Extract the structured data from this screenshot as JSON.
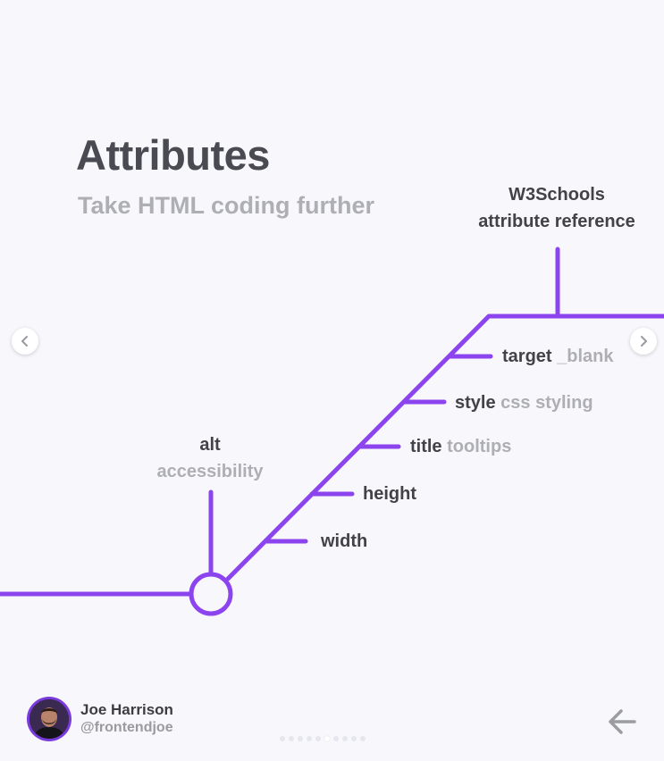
{
  "title": "Attributes",
  "subtitle": "Take HTML coding further",
  "reference": {
    "line1": "W3Schools",
    "line2": "attribute reference"
  },
  "start_node": {
    "name": "alt",
    "desc": "accessibility"
  },
  "branches": [
    {
      "name": "width",
      "desc": ""
    },
    {
      "name": "height",
      "desc": ""
    },
    {
      "name": "title",
      "desc": "tooltips"
    },
    {
      "name": "style",
      "desc": "css styling"
    },
    {
      "name": "target",
      "desc": "_blank"
    }
  ],
  "author": {
    "name": "Joe Harrison",
    "handle": "@frontendjoe"
  },
  "carousel": {
    "dots": 10,
    "active_index": 5
  },
  "colors": {
    "accent": "#8c44ee",
    "heading": "#4a4a52",
    "muted": "#aeaeb5",
    "background": "#f7f7fc"
  },
  "icons": {
    "prev": "chevron-left-icon",
    "next": "chevron-right-icon",
    "back": "arrow-left-icon"
  }
}
